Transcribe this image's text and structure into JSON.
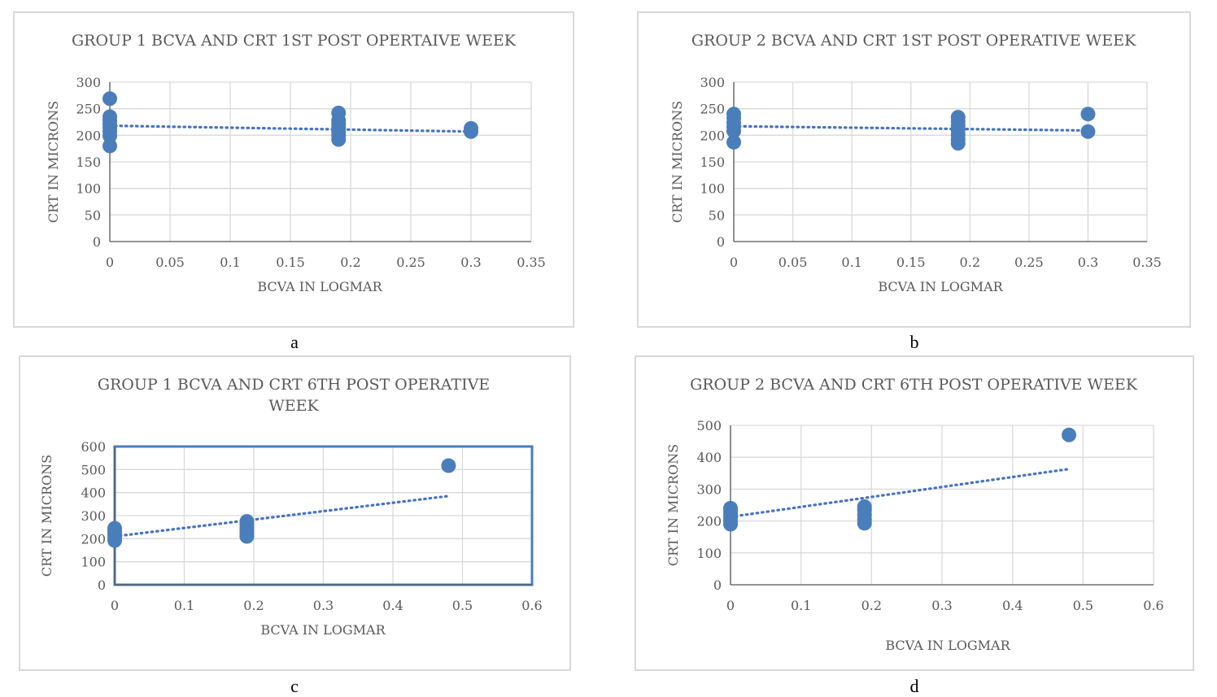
{
  "colors": {
    "marker": "#4a7ebb",
    "trend": "#4472c4",
    "grid": "#d9d9d9",
    "axis": "#595959",
    "text": "#595959",
    "border": "#d9d9d9",
    "plotBorder": "#4a7ebb"
  },
  "captions": [
    "a",
    "b",
    "c",
    "d"
  ],
  "chart_data": [
    {
      "type": "scatter",
      "title": "GROUP 1 BCVA AND CRT 1ST POST OPERTAIVE WEEK",
      "xlabel": "BCVA IN LOGMAR",
      "ylabel": "CRT IN MICRONS",
      "xlim": [
        0,
        0.35
      ],
      "ylim": [
        0,
        300
      ],
      "xticks": [
        0,
        0.05,
        0.1,
        0.15,
        0.2,
        0.25,
        0.3,
        0.35
      ],
      "yticks": [
        0,
        50,
        100,
        150,
        200,
        250,
        300
      ],
      "xtick_labels": [
        "0",
        "0.05",
        "0.1",
        "0.15",
        "0.2",
        "0.25",
        "0.3",
        "0.35"
      ],
      "ytick_labels": [
        "0",
        "50",
        "100",
        "150",
        "200",
        "250",
        "300"
      ],
      "grid": true,
      "points": [
        [
          0,
          269
        ],
        [
          0,
          235
        ],
        [
          0,
          228
        ],
        [
          0,
          221
        ],
        [
          0,
          214
        ],
        [
          0,
          207
        ],
        [
          0,
          199
        ],
        [
          0,
          180
        ],
        [
          0.19,
          242
        ],
        [
          0.19,
          228
        ],
        [
          0.19,
          221
        ],
        [
          0.19,
          214
        ],
        [
          0.19,
          207
        ],
        [
          0.19,
          200
        ],
        [
          0.19,
          192
        ],
        [
          0.3,
          213
        ],
        [
          0.3,
          207
        ]
      ],
      "trendline": [
        [
          0,
          218
        ],
        [
          0.3,
          207
        ]
      ]
    },
    {
      "type": "scatter",
      "title": "GROUP 2 BCVA AND CRT 1ST POST OPERATIVE WEEK",
      "xlabel": "BCVA IN LOGMAR",
      "ylabel": "CRT IN MICRONS",
      "xlim": [
        0,
        0.35
      ],
      "ylim": [
        0,
        300
      ],
      "xticks": [
        0,
        0.05,
        0.1,
        0.15,
        0.2,
        0.25,
        0.3,
        0.35
      ],
      "yticks": [
        0,
        50,
        100,
        150,
        200,
        250,
        300
      ],
      "xtick_labels": [
        "0",
        "0.05",
        "0.1",
        "0.15",
        "0.2",
        "0.25",
        "0.3",
        "0.35"
      ],
      "ytick_labels": [
        "0",
        "50",
        "100",
        "150",
        "200",
        "250",
        "300"
      ],
      "grid": true,
      "points": [
        [
          0,
          240
        ],
        [
          0,
          232
        ],
        [
          0,
          224
        ],
        [
          0,
          216
        ],
        [
          0,
          208
        ],
        [
          0,
          187
        ],
        [
          0.19,
          234
        ],
        [
          0.19,
          226
        ],
        [
          0.19,
          218
        ],
        [
          0.19,
          210
        ],
        [
          0.19,
          201
        ],
        [
          0.19,
          192
        ],
        [
          0.19,
          185
        ],
        [
          0.3,
          240
        ],
        [
          0.3,
          207
        ]
      ],
      "trendline": [
        [
          0,
          217
        ],
        [
          0.3,
          209
        ]
      ]
    },
    {
      "type": "scatter",
      "title": "GROUP 1 BCVA AND CRT 6TH POST OPERATIVE WEEK",
      "xlabel": "BCVA IN LOGMAR",
      "ylabel": "CRT IN MICRONS",
      "xlim": [
        0,
        0.6
      ],
      "ylim": [
        0,
        600
      ],
      "xticks": [
        0,
        0.1,
        0.2,
        0.3,
        0.4,
        0.5,
        0.6
      ],
      "yticks": [
        0,
        100,
        200,
        300,
        400,
        500,
        600
      ],
      "xtick_labels": [
        "0",
        "0.1",
        "0.2",
        "0.3",
        "0.4",
        "0.5",
        "0.6"
      ],
      "ytick_labels": [
        "0",
        "100",
        "200",
        "300",
        "400",
        "500",
        "600"
      ],
      "grid": true,
      "plot_border": true,
      "points": [
        [
          0,
          245
        ],
        [
          0,
          235
        ],
        [
          0,
          225
        ],
        [
          0,
          215
        ],
        [
          0,
          205
        ],
        [
          0,
          192
        ],
        [
          0.19,
          275
        ],
        [
          0.19,
          262
        ],
        [
          0.19,
          248
        ],
        [
          0.19,
          235
        ],
        [
          0.19,
          222
        ],
        [
          0.19,
          210
        ],
        [
          0.48,
          517
        ]
      ],
      "trendline": [
        [
          0,
          210
        ],
        [
          0.48,
          385
        ]
      ]
    },
    {
      "type": "scatter",
      "title": "GROUP 2 BCVA AND CRT 6TH POST OPERATIVE WEEK",
      "xlabel": "BCVA IN LOGMAR",
      "ylabel": "CRT IN MICRONS",
      "xlim": [
        0,
        0.6
      ],
      "ylim": [
        0,
        500
      ],
      "xticks": [
        0,
        0.1,
        0.2,
        0.3,
        0.4,
        0.5,
        0.6
      ],
      "yticks": [
        0,
        100,
        200,
        300,
        400,
        500
      ],
      "xtick_labels": [
        "0",
        "0.1",
        "0.2",
        "0.3",
        "0.4",
        "0.5",
        "0.6"
      ],
      "ytick_labels": [
        "0",
        "100",
        "200",
        "300",
        "400",
        "500"
      ],
      "grid": true,
      "points": [
        [
          0,
          240
        ],
        [
          0,
          230
        ],
        [
          0,
          220
        ],
        [
          0,
          210
        ],
        [
          0,
          200
        ],
        [
          0,
          190
        ],
        [
          0.19,
          245
        ],
        [
          0.19,
          235
        ],
        [
          0.19,
          220
        ],
        [
          0.19,
          205
        ],
        [
          0.19,
          193
        ],
        [
          0.48,
          470
        ]
      ],
      "trendline": [
        [
          0,
          213
        ],
        [
          0.48,
          363
        ]
      ]
    }
  ]
}
